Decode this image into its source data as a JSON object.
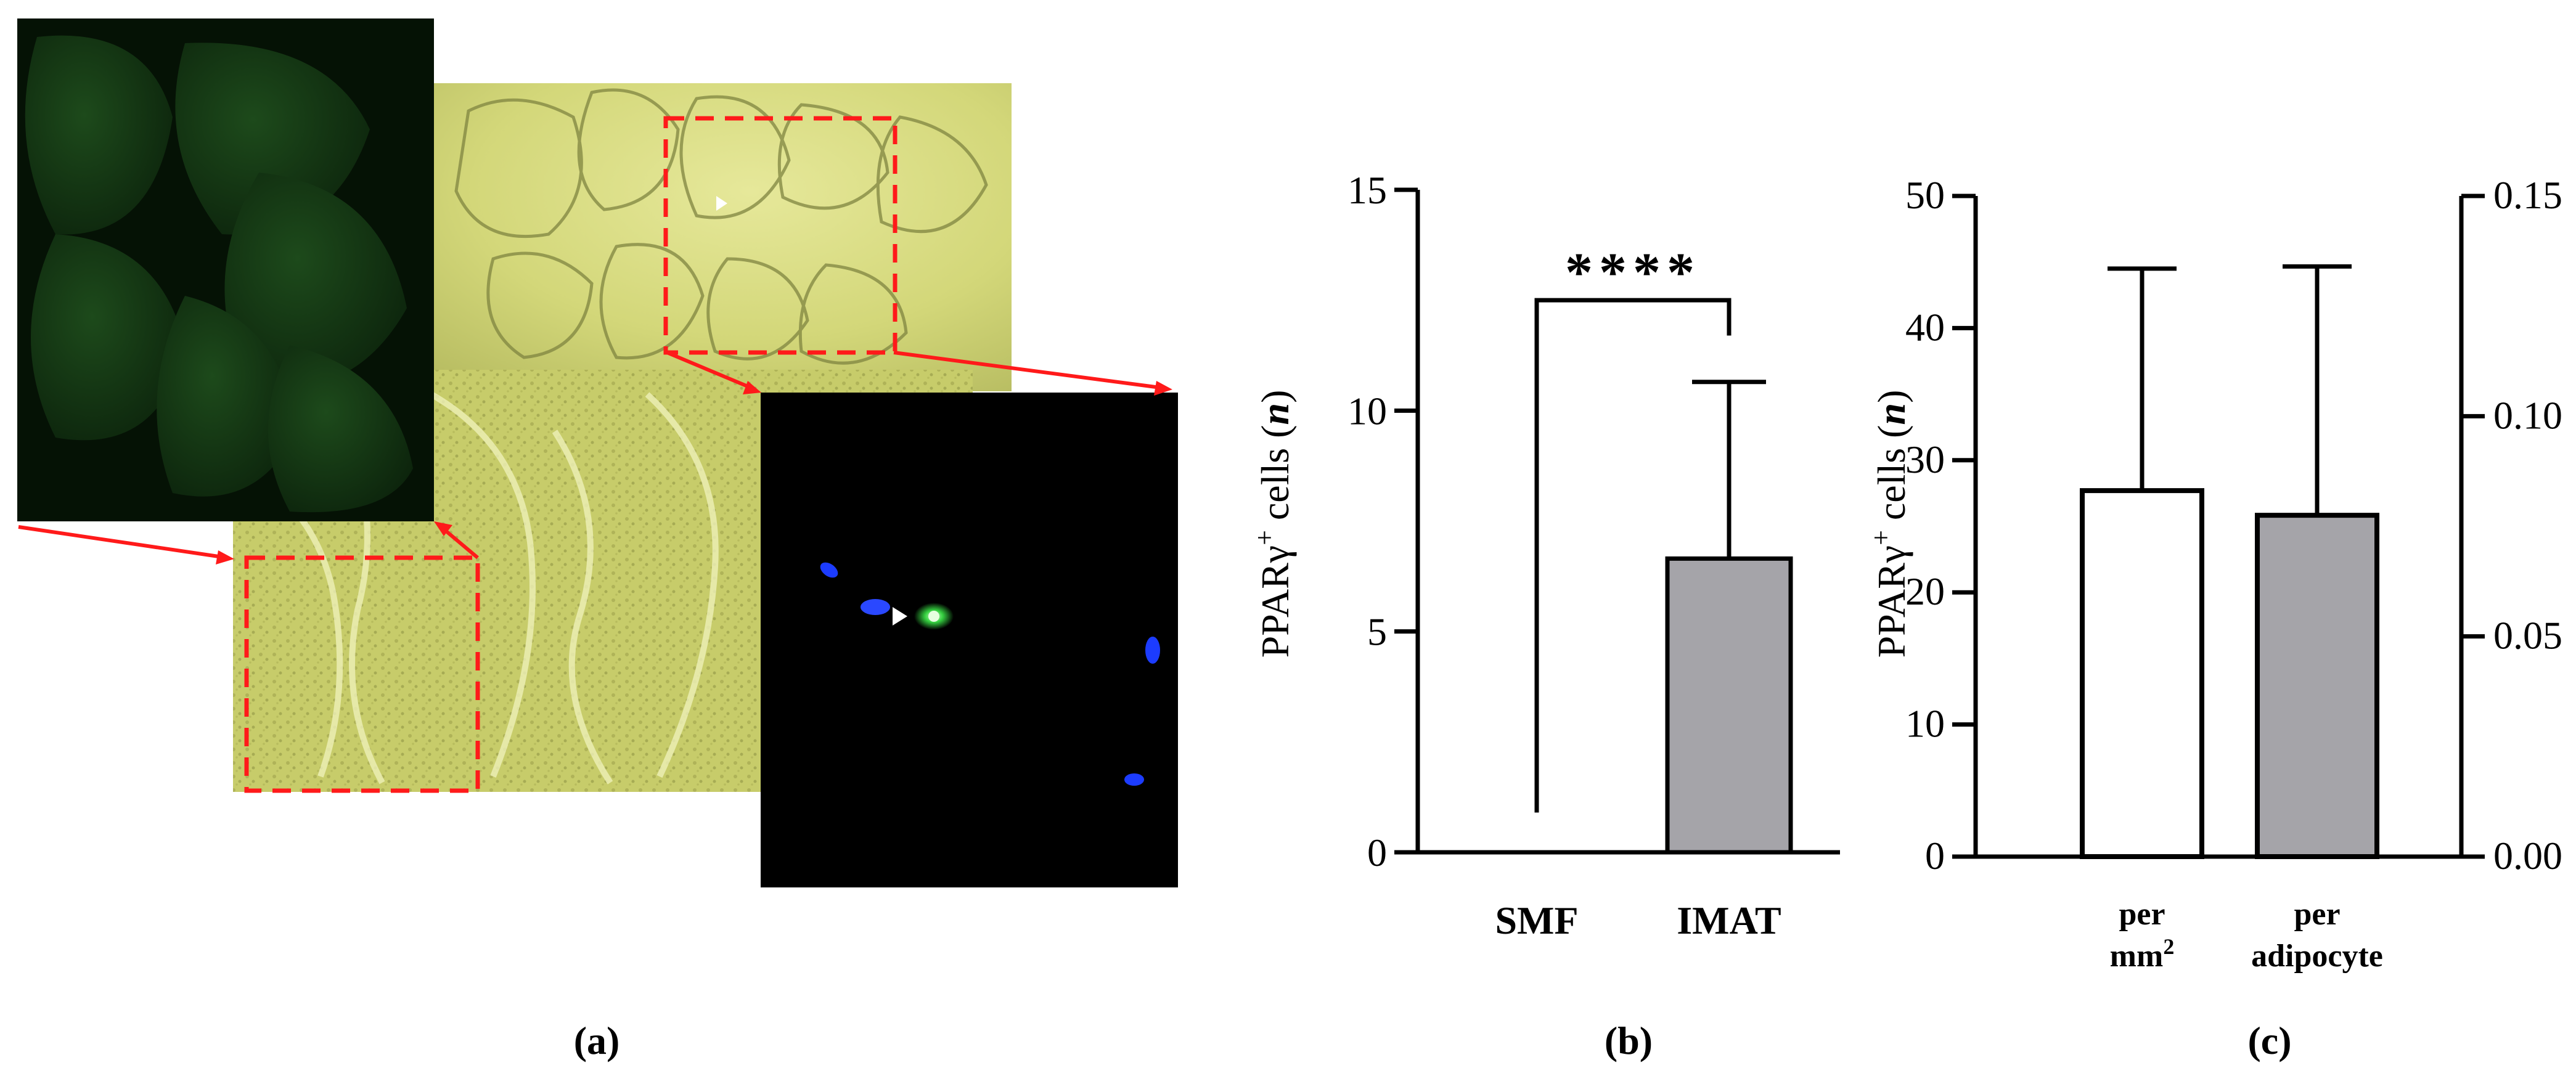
{
  "panels": {
    "a": {
      "label": "(a)"
    },
    "b": {
      "label": "(b)"
    },
    "c": {
      "label": "(c)"
    }
  },
  "micrograph": {
    "brightfield_color": "#d8dc7e",
    "fluorescence_bg": "#000000",
    "nucleus_stain_color": "#1c3cff",
    "pparg_stain_color": "#35d040",
    "box_color": "#ff1a1a"
  },
  "chart_data": [
    {
      "panel": "b",
      "type": "bar",
      "categories": [
        "SMF",
        "IMAT"
      ],
      "values": [
        0,
        6.65
      ],
      "error_upper": [
        null,
        10.65
      ],
      "ylabel": "PPARγ+ cells (n)",
      "ylabel_parts": {
        "main": "PPARγ",
        "sup": "+",
        "mid": " cells (",
        "italic": "n",
        "end": ")"
      },
      "ylim": [
        0,
        15
      ],
      "yticks": [
        "0",
        "5",
        "10",
        "15"
      ],
      "ytick_values": [
        0,
        5,
        10,
        15
      ],
      "bar_colors": [
        "#ffffff",
        "#a5a4a9"
      ],
      "significance": {
        "label": "****",
        "between": [
          "SMF",
          "IMAT"
        ],
        "bracket_y": 12.5
      },
      "smf_bracket_bottom": 0.9,
      "imat_bracket_bottom": 11.7,
      "grid": false,
      "legend": "none"
    },
    {
      "panel": "c",
      "type": "bar",
      "categories": [
        "per mm2",
        "per adipocyte"
      ],
      "category_lines": [
        {
          "line1": "per",
          "line2": "mm",
          "line2_sup": "2"
        },
        {
          "line1": "per",
          "line2": "adipocyte",
          "line2_sup": ""
        }
      ],
      "values": [
        27.7,
        0.0775
      ],
      "error_upper": [
        44.5,
        0.134
      ],
      "axis": [
        "left",
        "right"
      ],
      "ylabel": "PPARγ+ cells (n)",
      "ylabel_parts": {
        "main": "PPARγ",
        "sup": "+",
        "mid": " cells (",
        "italic": "n",
        "end": ")"
      },
      "ylim_left": [
        0,
        50
      ],
      "yticks_left": [
        "0",
        "10",
        "20",
        "30",
        "40",
        "50"
      ],
      "ytick_values_left": [
        0,
        10,
        20,
        30,
        40,
        50
      ],
      "ylim_right": [
        0,
        0.15
      ],
      "yticks_right": [
        "0.00",
        "0.05",
        "0.10",
        "0.15"
      ],
      "ytick_values_right": [
        0,
        0.05,
        0.1,
        0.15
      ],
      "bar_colors": [
        "#ffffff",
        "#a5a4a9"
      ],
      "grid": false,
      "legend": "none"
    }
  ]
}
